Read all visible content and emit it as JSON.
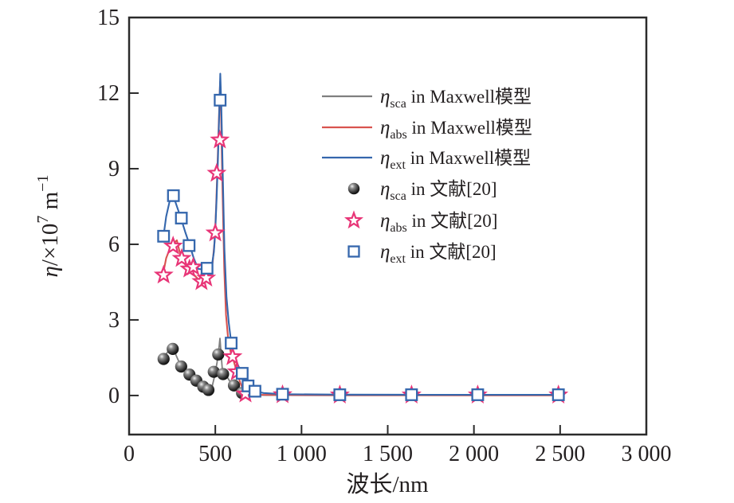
{
  "figure": {
    "type_note": "spectral coefficient comparison chart",
    "background": "#ffffff",
    "frame_color": "#2b2b2b"
  },
  "axes": {
    "x": {
      "label": "波长/nm",
      "range": [
        0,
        3000
      ],
      "tick_values": [
        0,
        500,
        1000,
        1500,
        2000,
        2500,
        3000
      ],
      "tick_labels": [
        "0",
        "500",
        "1 000",
        "1 500",
        "2 000",
        "2 500",
        "3 000"
      ]
    },
    "y": {
      "label": "η/×10⁷ m⁻¹",
      "label_parts": {
        "eta": "η",
        "frac": "/×10",
        "sup": "7",
        "unit": " m",
        "sup2": "−1"
      },
      "range": [
        -1.55,
        15
      ],
      "tick_values": [
        0,
        3,
        6,
        9,
        12,
        15
      ],
      "tick_labels": [
        "0",
        "3",
        "6",
        "9",
        "12",
        "15"
      ]
    }
  },
  "legend": {
    "items": [
      {
        "id": "sca_maxwell",
        "symbol": "line",
        "color": "#7f7f7f",
        "eta": "η",
        "sub": "sca",
        "rest": " in Maxwell模型"
      },
      {
        "id": "abs_maxwell",
        "symbol": "line",
        "color": "#d9534f",
        "eta": "η",
        "sub": "abs",
        "rest": " in Maxwell模型"
      },
      {
        "id": "ext_maxwell",
        "symbol": "line",
        "color": "#3567ad",
        "eta": "η",
        "sub": "ext",
        "rest": " in Maxwell模型"
      },
      {
        "id": "sca_ref",
        "symbol": "sphere",
        "color": "#111111",
        "eta": "η",
        "sub": "sca",
        "rest": " in 文献[20]"
      },
      {
        "id": "abs_ref",
        "symbol": "star",
        "color": "#e83577",
        "eta": "η",
        "sub": "abs",
        "rest": " in 文献[20]"
      },
      {
        "id": "ext_ref",
        "symbol": "square",
        "color": "#3567ad",
        "eta": "η",
        "sub": "ext",
        "rest": " in 文献[20]"
      }
    ]
  },
  "chart_data": {
    "type": "line",
    "title": "",
    "xlabel": "波长/nm",
    "ylabel": "η/×10⁷ m⁻¹",
    "xlim": [
      0,
      3000
    ],
    "ylim": [
      -1.55,
      15
    ],
    "x_ticks": [
      0,
      500,
      1000,
      1500,
      2000,
      2500,
      3000
    ],
    "y_ticks": [
      0,
      3,
      6,
      9,
      12,
      15
    ],
    "grid": false,
    "legend_position": "upper right inside",
    "series": [
      {
        "id": "sca_maxwell",
        "name": "η_sca in Maxwell模型",
        "kind": "line",
        "color": "#7f7f7f",
        "width": 1.8,
        "points": [
          [
            195,
            1.42
          ],
          [
            215,
            1.65
          ],
          [
            235,
            1.82
          ],
          [
            255,
            1.9
          ],
          [
            275,
            1.55
          ],
          [
            300,
            1.17
          ],
          [
            325,
            0.98
          ],
          [
            350,
            0.84
          ],
          [
            375,
            0.7
          ],
          [
            400,
            0.55
          ],
          [
            425,
            0.38
          ],
          [
            450,
            0.25
          ],
          [
            465,
            0.2
          ],
          [
            480,
            0.3
          ],
          [
            495,
            0.75
          ],
          [
            510,
            1.3
          ],
          [
            520,
            1.8
          ],
          [
            527,
            2.27
          ],
          [
            533,
            1.7
          ],
          [
            540,
            1.1
          ],
          [
            550,
            0.9
          ],
          [
            565,
            0.78
          ],
          [
            585,
            0.55
          ],
          [
            610,
            0.4
          ],
          [
            635,
            0.22
          ],
          [
            660,
            0.09
          ],
          [
            690,
            0.04
          ],
          [
            730,
            0.02
          ],
          [
            800,
            0.01
          ],
          [
            890,
            0.01
          ],
          [
            1222,
            0.005
          ],
          [
            1638,
            0.004
          ],
          [
            2022,
            0.003
          ],
          [
            2490,
            0.003
          ]
        ]
      },
      {
        "id": "abs_maxwell",
        "name": "η_abs in Maxwell模型",
        "kind": "line",
        "color": "#d9534f",
        "width": 2.1,
        "points": [
          [
            195,
            4.75
          ],
          [
            215,
            5.45
          ],
          [
            235,
            5.8
          ],
          [
            255,
            6.0
          ],
          [
            277,
            6.16
          ],
          [
            300,
            5.5
          ],
          [
            325,
            5.2
          ],
          [
            350,
            5.0
          ],
          [
            375,
            4.8
          ],
          [
            400,
            4.62
          ],
          [
            425,
            4.52
          ],
          [
            450,
            4.58
          ],
          [
            470,
            4.75
          ],
          [
            485,
            5.3
          ],
          [
            497,
            6.2
          ],
          [
            505,
            7.5
          ],
          [
            513,
            9.2
          ],
          [
            520,
            10.8
          ],
          [
            528,
            12.45
          ],
          [
            534,
            11.0
          ],
          [
            542,
            8.0
          ],
          [
            552,
            5.0
          ],
          [
            562,
            3.2
          ],
          [
            575,
            2.2
          ],
          [
            590,
            1.7
          ],
          [
            605,
            1.4
          ],
          [
            625,
            0.95
          ],
          [
            645,
            0.5
          ],
          [
            665,
            0.18
          ],
          [
            685,
            0.08
          ],
          [
            710,
            0.05
          ],
          [
            750,
            0.03
          ],
          [
            890,
            0.02
          ],
          [
            1222,
            0.015
          ],
          [
            1638,
            0.012
          ],
          [
            2022,
            0.01
          ],
          [
            2490,
            0.01
          ]
        ]
      },
      {
        "id": "ext_maxwell",
        "name": "η_ext in Maxwell模型",
        "kind": "line",
        "color": "#3567ad",
        "width": 2.1,
        "points": [
          [
            195,
            6.1
          ],
          [
            215,
            7.1
          ],
          [
            235,
            7.7
          ],
          [
            255,
            7.95
          ],
          [
            275,
            7.55
          ],
          [
            300,
            7.05
          ],
          [
            325,
            6.5
          ],
          [
            350,
            6.0
          ],
          [
            375,
            5.45
          ],
          [
            400,
            5.03
          ],
          [
            425,
            5.0
          ],
          [
            450,
            5.05
          ],
          [
            465,
            4.95
          ],
          [
            480,
            5.15
          ],
          [
            492,
            5.7
          ],
          [
            500,
            6.6
          ],
          [
            508,
            7.9
          ],
          [
            515,
            9.3
          ],
          [
            522,
            11.0
          ],
          [
            529,
            12.77
          ],
          [
            535,
            11.5
          ],
          [
            543,
            8.8
          ],
          [
            553,
            5.8
          ],
          [
            565,
            3.9
          ],
          [
            578,
            2.9
          ],
          [
            592,
            2.1
          ],
          [
            610,
            1.55
          ],
          [
            635,
            1.15
          ],
          [
            656,
            0.88
          ],
          [
            673,
            0.6
          ],
          [
            690,
            0.38
          ],
          [
            710,
            0.26
          ],
          [
            730,
            0.17
          ],
          [
            780,
            0.1
          ],
          [
            890,
            0.05
          ],
          [
            1222,
            0.035
          ],
          [
            1638,
            0.03
          ],
          [
            2022,
            0.03
          ],
          [
            2490,
            0.03
          ]
        ]
      },
      {
        "id": "sca_ref",
        "name": "η_sca in 文献[20]",
        "kind": "scatter",
        "marker": "sphere",
        "color": "#111111",
        "points": [
          [
            200,
            1.45
          ],
          [
            253,
            1.85
          ],
          [
            302,
            1.15
          ],
          [
            350,
            0.83
          ],
          [
            390,
            0.59
          ],
          [
            430,
            0.35
          ],
          [
            460,
            0.22
          ],
          [
            491,
            0.94
          ],
          [
            517,
            1.63
          ],
          [
            545,
            0.85
          ],
          [
            608,
            0.4
          ],
          [
            655,
            0.1
          ]
        ]
      },
      {
        "id": "abs_ref",
        "name": "η_abs in 文献[20]",
        "kind": "scatter",
        "marker": "star",
        "color": "#e83577",
        "points": [
          [
            200,
            4.78
          ],
          [
            255,
            5.93
          ],
          [
            305,
            5.44
          ],
          [
            350,
            5.02
          ],
          [
            372,
            5.1
          ],
          [
            420,
            4.52
          ],
          [
            447,
            4.66
          ],
          [
            500,
            6.45
          ],
          [
            508,
            8.82
          ],
          [
            526,
            10.14
          ],
          [
            600,
            1.54
          ],
          [
            625,
            0.94
          ],
          [
            675,
            0.06
          ],
          [
            890,
            0.03
          ],
          [
            1222,
            0.02
          ],
          [
            1638,
            0.02
          ],
          [
            2022,
            0.02
          ],
          [
            2490,
            0.02
          ]
        ]
      },
      {
        "id": "ext_ref",
        "name": "η_ext in 文献[20]",
        "kind": "scatter",
        "marker": "square",
        "color": "#3567ad",
        "points": [
          [
            200,
            6.32
          ],
          [
            257,
            7.93
          ],
          [
            303,
            7.04
          ],
          [
            348,
            5.95
          ],
          [
            452,
            5.05
          ],
          [
            528,
            11.72
          ],
          [
            592,
            2.08
          ],
          [
            656,
            0.88
          ],
          [
            690,
            0.38
          ],
          [
            730,
            0.17
          ],
          [
            890,
            0.05
          ],
          [
            1222,
            0.03
          ],
          [
            1638,
            0.03
          ],
          [
            2022,
            0.03
          ],
          [
            2490,
            0.03
          ]
        ]
      }
    ]
  }
}
